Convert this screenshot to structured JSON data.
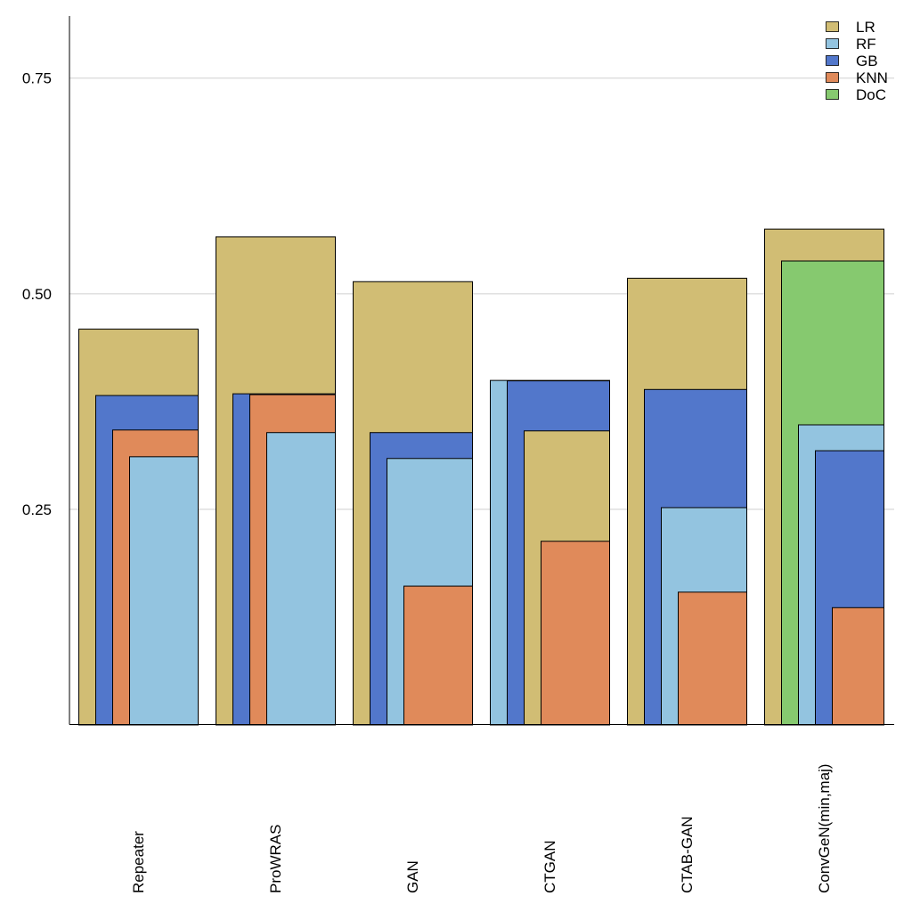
{
  "chart_data": {
    "type": "bar",
    "layout": "overlapping bars per group, sorted tallest first",
    "categories": [
      "Repeater",
      "ProWRAS",
      "GAN",
      "CTGAN",
      "CTAB-GAN",
      "ConvGeN(min,maj)"
    ],
    "series": [
      {
        "name": "LR",
        "color": "#d1bd74",
        "values": [
          0.459,
          0.566,
          0.514,
          0.341,
          0.518,
          0.575
        ]
      },
      {
        "name": "RF",
        "color": "#93c4e0",
        "values": [
          0.311,
          0.339,
          0.309,
          0.3995,
          0.252,
          0.348
        ]
      },
      {
        "name": "GB",
        "color": "#5277cb",
        "values": [
          0.382,
          0.384,
          0.339,
          0.399,
          0.389,
          0.318
        ]
      },
      {
        "name": "KNN",
        "color": "#e08a5a",
        "values": [
          0.342,
          0.383,
          0.161,
          0.213,
          0.154,
          0.136
        ]
      },
      {
        "name": "DoC",
        "color": "#86c96f",
        "values": [
          null,
          null,
          null,
          null,
          null,
          0.538
        ]
      }
    ],
    "yticks": [
      "0.25",
      "0.50",
      "0.75"
    ],
    "ytick_values": [
      0.25,
      0.5,
      0.75
    ],
    "ylim": [
      0,
      0.822
    ],
    "grid": "horizontal",
    "legend_position": "top-right",
    "title": "",
    "xlabel": "",
    "ylabel": ""
  }
}
